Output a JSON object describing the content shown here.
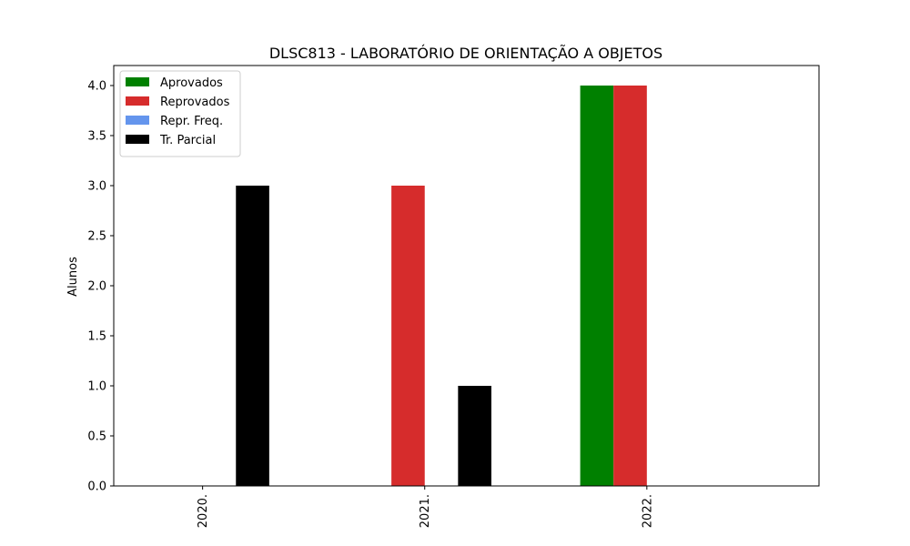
{
  "chart_data": {
    "type": "bar",
    "title": "DLSC813 - LABORATÓRIO DE ORIENTAÇÃO A OBJETOS",
    "xlabel": "",
    "ylabel": "Alunos",
    "categories": [
      "2020.",
      "2021.",
      "2022."
    ],
    "ylim": [
      0,
      4.2
    ],
    "yticks": [
      "0.0",
      "0.5",
      "1.0",
      "1.5",
      "2.0",
      "2.5",
      "3.0",
      "3.5",
      "4.0"
    ],
    "grid": false,
    "legend_position": "top-left",
    "series": [
      {
        "name": "Aprovados",
        "color": "#008000",
        "values": [
          0,
          0,
          4
        ]
      },
      {
        "name": "Reprovados",
        "color": "#d62c2c",
        "values": [
          0,
          3,
          4
        ]
      },
      {
        "name": "Repr. Freq.",
        "color": "#6495ed",
        "values": [
          0,
          0,
          0
        ]
      },
      {
        "name": "Tr. Parcial",
        "color": "#000000",
        "values": [
          3,
          1,
          0
        ]
      }
    ]
  }
}
